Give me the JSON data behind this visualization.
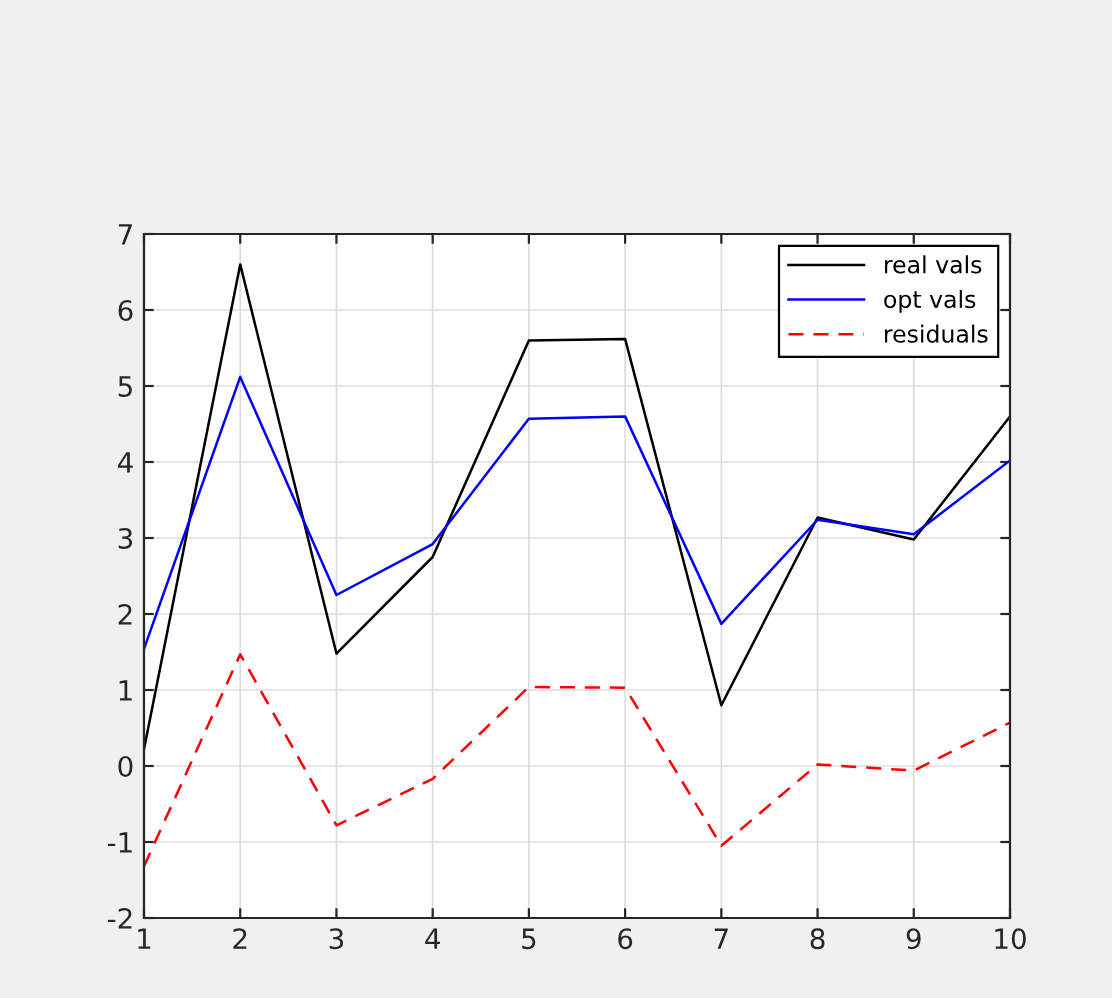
{
  "chart_data": {
    "type": "line",
    "x": [
      1,
      2,
      3,
      4,
      5,
      6,
      7,
      8,
      9,
      10
    ],
    "series": [
      {
        "name": "real vals",
        "color": "#000000",
        "line_style": "solid",
        "values": [
          0.22,
          6.6,
          1.48,
          2.75,
          5.6,
          5.62,
          0.8,
          3.27,
          2.98,
          4.6
        ]
      },
      {
        "name": "opt vals",
        "color": "#0000ff",
        "line_style": "solid",
        "values": [
          1.54,
          5.12,
          2.25,
          2.92,
          4.57,
          4.6,
          1.87,
          3.24,
          3.05,
          4.02
        ]
      },
      {
        "name": "residuals",
        "color": "#ff0000",
        "line_style": "dashed",
        "values": [
          -1.32,
          1.47,
          -0.78,
          -0.17,
          1.04,
          1.03,
          -1.05,
          0.02,
          -0.06,
          0.57
        ]
      }
    ],
    "xlim": [
      1,
      10
    ],
    "xticks": [
      1,
      2,
      3,
      4,
      5,
      6,
      7,
      8,
      9,
      10
    ],
    "ylim": [
      -2,
      7
    ],
    "yticks": [
      -2,
      -1,
      0,
      1,
      2,
      3,
      4,
      5,
      6,
      7
    ],
    "grid": true,
    "legend": "top right",
    "marker": "none"
  }
}
